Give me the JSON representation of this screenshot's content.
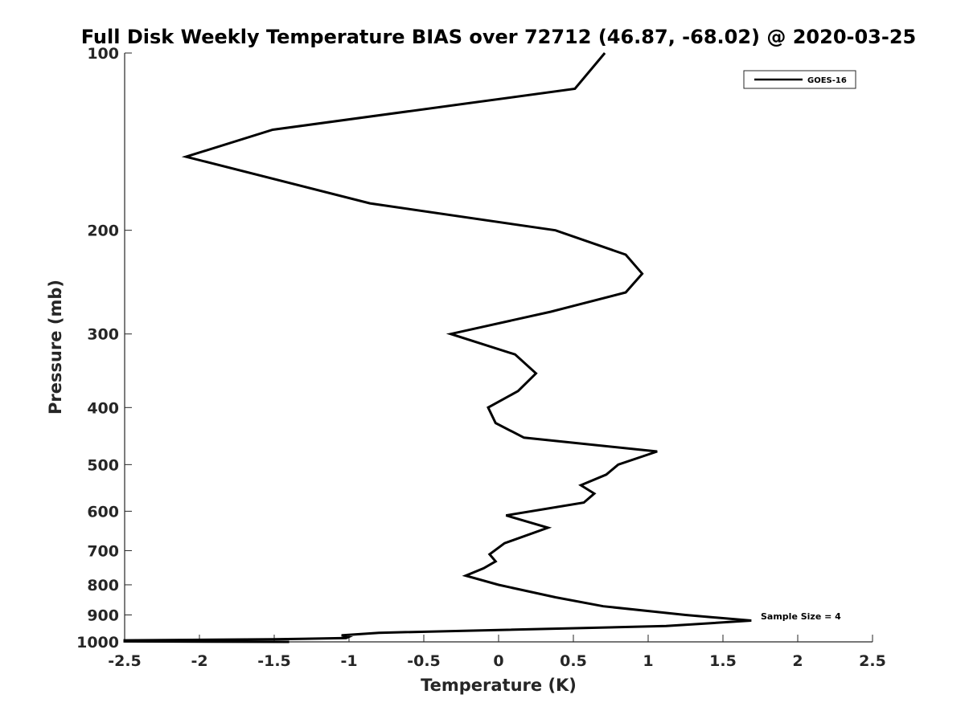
{
  "chart_data": {
    "type": "line",
    "title": "Full Disk Weekly Temperature BIAS over 72712 (46.87, -68.02) @ 2020-03-25",
    "xlabel": "Temperature (K)",
    "ylabel": "Pressure (mb)",
    "xlim": [
      -2.5,
      2.5
    ],
    "ylim": [
      1000,
      100
    ],
    "y_scale": "log",
    "y_reversed": true,
    "x_ticks": [
      -2.5,
      -2,
      -1.5,
      -1,
      -0.5,
      0,
      0.5,
      1,
      1.5,
      2,
      2.5
    ],
    "x_tick_labels": [
      "-2.5",
      "-2",
      "-1.5",
      "-1",
      "-0.5",
      "0",
      "0.5",
      "1",
      "1.5",
      "2",
      "2.5"
    ],
    "y_ticks": [
      100,
      200,
      300,
      400,
      500,
      600,
      700,
      800,
      900,
      1000
    ],
    "y_tick_labels": [
      "100",
      "200",
      "300",
      "400",
      "500",
      "600",
      "700",
      "800",
      "900",
      "1000"
    ],
    "grid": false,
    "legend_position": "top-right",
    "annotation": "Sample Size = 4",
    "series": [
      {
        "name": "GOES-16",
        "color": "#000000",
        "points": [
          {
            "x": 0.71,
            "y": 100
          },
          {
            "x": 0.51,
            "y": 115
          },
          {
            "x": -1.51,
            "y": 135
          },
          {
            "x": -2.09,
            "y": 150
          },
          {
            "x": -0.86,
            "y": 180
          },
          {
            "x": 0.38,
            "y": 200
          },
          {
            "x": 0.85,
            "y": 220
          },
          {
            "x": 0.96,
            "y": 237
          },
          {
            "x": 0.85,
            "y": 255
          },
          {
            "x": 0.35,
            "y": 275
          },
          {
            "x": -0.32,
            "y": 300
          },
          {
            "x": 0.11,
            "y": 325
          },
          {
            "x": 0.25,
            "y": 350
          },
          {
            "x": 0.13,
            "y": 375
          },
          {
            "x": -0.07,
            "y": 400
          },
          {
            "x": -0.02,
            "y": 425
          },
          {
            "x": 0.17,
            "y": 450
          },
          {
            "x": 1.06,
            "y": 475
          },
          {
            "x": 0.8,
            "y": 500
          },
          {
            "x": 0.72,
            "y": 520
          },
          {
            "x": 0.55,
            "y": 542
          },
          {
            "x": 0.64,
            "y": 560
          },
          {
            "x": 0.57,
            "y": 580
          },
          {
            "x": 0.05,
            "y": 610
          },
          {
            "x": 0.33,
            "y": 640
          },
          {
            "x": 0.04,
            "y": 680
          },
          {
            "x": -0.06,
            "y": 710
          },
          {
            "x": -0.02,
            "y": 730
          },
          {
            "x": -0.1,
            "y": 750
          },
          {
            "x": -0.22,
            "y": 772
          },
          {
            "x": 0.0,
            "y": 800
          },
          {
            "x": 0.38,
            "y": 840
          },
          {
            "x": 0.7,
            "y": 870
          },
          {
            "x": 1.25,
            "y": 900
          },
          {
            "x": 1.69,
            "y": 920
          },
          {
            "x": 1.12,
            "y": 940
          },
          {
            "x": -0.8,
            "y": 965
          },
          {
            "x": -1.05,
            "y": 975
          },
          {
            "x": -1.0,
            "y": 980
          },
          {
            "x": -1.02,
            "y": 985
          },
          {
            "x": -1.5,
            "y": 990
          },
          {
            "x": -2.5,
            "y": 994
          },
          {
            "x": -2.5,
            "y": 998
          },
          {
            "x": -1.4,
            "y": 1000
          }
        ]
      }
    ]
  }
}
